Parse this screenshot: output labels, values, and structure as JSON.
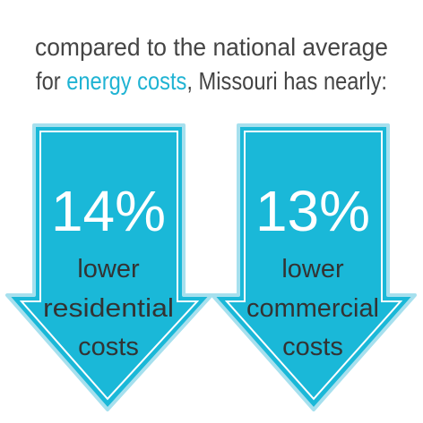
{
  "header": {
    "line1": "compared to the national average",
    "line2": {
      "before": "for ",
      "highlight": "energy costs",
      "after": ", Missouri has nearly:"
    }
  },
  "stats": [
    {
      "value": "14%",
      "lines": [
        "lower",
        "residential",
        "costs"
      ]
    },
    {
      "value": "13%",
      "lines": [
        "lower",
        "commercial",
        "costs"
      ]
    }
  ]
}
